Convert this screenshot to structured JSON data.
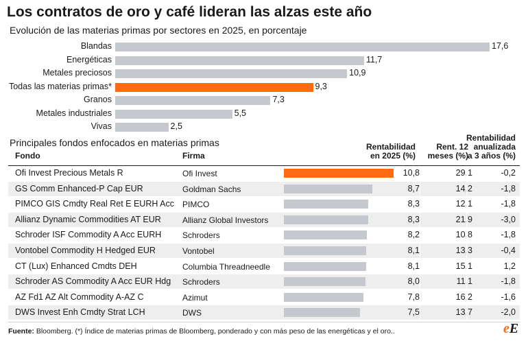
{
  "header": {
    "title": "Los contratos de oro y café lideran las alzas este año",
    "subtitle": "Evolución de las materias primas por sectores en 2025, en porcentaje"
  },
  "colors": {
    "highlight": "#ff6a13",
    "bar": "#c5c8cd",
    "row_shade": "#eeeeee",
    "text": "#1a1a1a"
  },
  "chart_data": [
    {
      "type": "bar",
      "orientation": "horizontal",
      "title": "Evolución de las materias primas por sectores en 2025, en porcentaje",
      "categories": [
        "Blandas",
        "Energéticas",
        "Metales preciosos",
        "Todas las materias primas*",
        "Granos",
        "Metales industriales",
        "Vivas"
      ],
      "values": [
        17.6,
        11.7,
        10.9,
        9.3,
        7.3,
        5.5,
        2.5
      ],
      "value_labels": [
        "17,6",
        "11,7",
        "10,9",
        "9,3",
        "7,3",
        "5,5",
        "2,5"
      ],
      "highlight_index": 3,
      "xlim": [
        0,
        17.6
      ],
      "grid": false
    },
    {
      "type": "table",
      "title": "Principales fondos enfocados en materias primas",
      "columns": [
        "Fondo",
        "Firma",
        "Rentabilidad en 2025 (%)",
        "Rent. 12 meses (%)",
        "Rentabilidad anualizada a 3 años (%)"
      ],
      "column_labels": {
        "fondo": "Fondo",
        "firma": "Firma",
        "ret_1": "Rentabilidad",
        "ret_2": "en 2025 (%)",
        "r12_1": "Rent. 12",
        "r12_2": "meses (%)",
        "r3_1": "Rentabilidad",
        "r3_2": "anualizada",
        "r3_3": "a 3 años (%)"
      },
      "bar_column": "Rentabilidad en 2025 (%)",
      "bar_max": 10.8,
      "highlight_index": 0,
      "rows": [
        {
          "fondo": "Ofi Invest Precious Metals R",
          "firma": "Ofi Invest",
          "ret": 10.8,
          "ret_label": "10,8",
          "r12": "29,1",
          "r3": "-0,2"
        },
        {
          "fondo": "GS Comm Enhanced-P Cap EUR",
          "firma": "Goldman Sachs",
          "ret": 8.7,
          "ret_label": "8,7",
          "r12": "14,2",
          "r3": "-1,8"
        },
        {
          "fondo": "PIMCO GIS Cmdty Real Ret E EURH Acc",
          "firma": "PIMCO",
          "ret": 8.3,
          "ret_label": "8,3",
          "r12": "12,1",
          "r3": "-1,8"
        },
        {
          "fondo": "Allianz Dynamic Commodities AT EUR",
          "firma": "Allianz Global Investors",
          "ret": 8.3,
          "ret_label": "8,3",
          "r12": "21,9",
          "r3": "-3,0"
        },
        {
          "fondo": "Schroder ISF Commodity A Acc EURH",
          "firma": "Schroders",
          "ret": 8.2,
          "ret_label": "8,2",
          "r12": "10,8",
          "r3": "-1,8"
        },
        {
          "fondo": "Vontobel Commodity H Hedged EUR",
          "firma": "Vontobel",
          "ret": 8.1,
          "ret_label": "8,1",
          "r12": "13,3",
          "r3": "-0,4"
        },
        {
          "fondo": "CT (Lux) Enhanced Cmdts DEH",
          "firma": "Columbia Threadneedle",
          "ret": 8.1,
          "ret_label": "8,1",
          "r12": "15,1",
          "r3": "1,2"
        },
        {
          "fondo": "Schroder AS Commodity A Acc EUR Hdg",
          "firma": "Schroders",
          "ret": 8.0,
          "ret_label": "8,0",
          "r12": "11,1",
          "r3": "-1,8"
        },
        {
          "fondo": "AZ Fd1 AZ Alt Commodity A-AZ C",
          "firma": "Azimut",
          "ret": 7.8,
          "ret_label": "7,8",
          "r12": "16,2",
          "r3": "-1,6"
        },
        {
          "fondo": "DWS Invest Enh Cmdty Strat LCH",
          "firma": "DWS",
          "ret": 7.5,
          "ret_label": "7,5",
          "r12": "13,7",
          "r3": "-2,0"
        }
      ]
    }
  ],
  "footer": {
    "source_label": "Fuente:",
    "source_text": " Bloomberg. (*) Índice de materias primas de Bloomberg, ponderado y con más peso de las energéticas y el oro..",
    "logo_e1": "e",
    "logo_e2": "E"
  }
}
